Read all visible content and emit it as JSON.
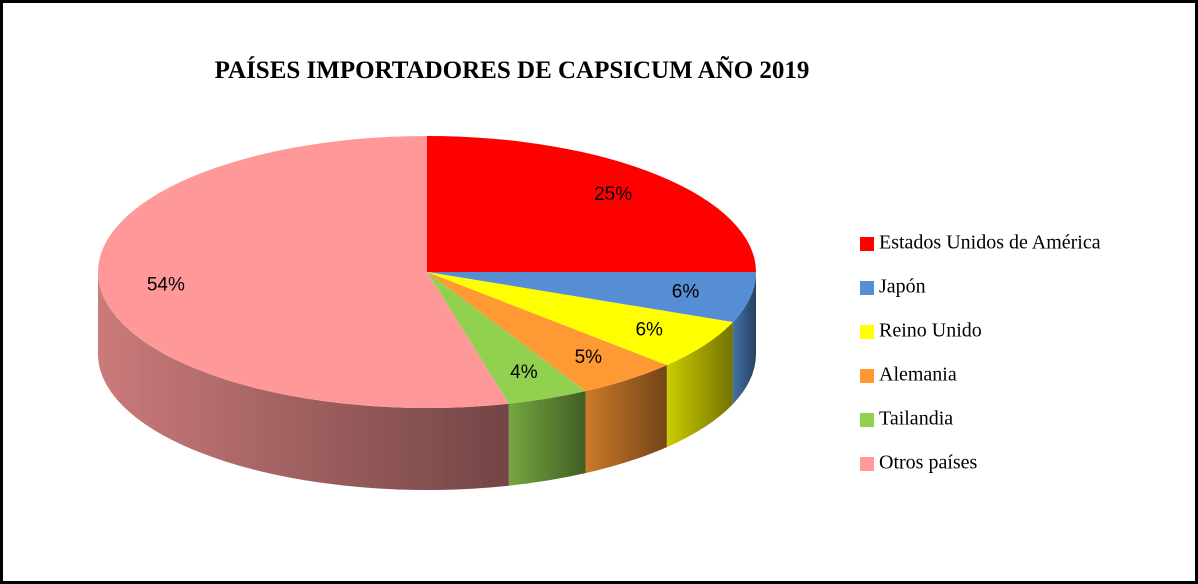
{
  "chart_data": {
    "type": "pie",
    "title": "PAÍSES IMPORTADORES DE CAPSICUM AÑO 2019",
    "categories": [
      "Estados Unidos de América",
      "Japón",
      "Reino Unido",
      "Alemania",
      "Tailandia",
      "Otros países"
    ],
    "values": [
      25,
      6,
      6,
      5,
      4,
      54
    ],
    "value_labels": [
      "25%",
      "6%",
      "6%",
      "5%",
      "4%",
      "54%"
    ],
    "colors": [
      "#ff0000",
      "#558ed5",
      "#ffff00",
      "#ff9933",
      "#92d050",
      "#ff9999"
    ],
    "legend": "right"
  }
}
